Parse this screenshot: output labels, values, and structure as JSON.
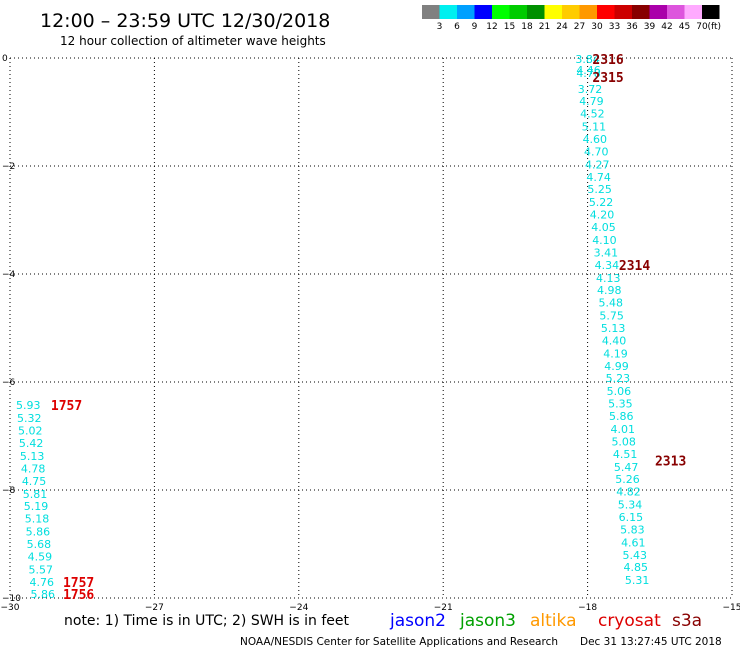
{
  "title": "12:00 – 23:59 UTC 12/30/2018",
  "subtitle": "12 hour collection of altimeter wave heights",
  "note": "note: 1) Time is in UTC; 2) SWH is in feet",
  "footer_left": "NOAA/NESDIS Center for Satellite Applications and Research",
  "footer_right": "Dec 31 13:27:45 UTC 2018",
  "satellites": [
    {
      "name": "jason2",
      "color": "#0000ff"
    },
    {
      "name": "jason3",
      "color": "#00a000"
    },
    {
      "name": "altika",
      "color": "#ff9900"
    },
    {
      "name": "cryosat",
      "color": "#dd0000"
    },
    {
      "name": "s3a",
      "color": "#880000"
    }
  ],
  "legend": {
    "unit": "(ft)",
    "bins": [
      {
        "label": "3",
        "color": "#808080"
      },
      {
        "label": "6",
        "color": "#00f0f0"
      },
      {
        "label": "9",
        "color": "#00a0ff"
      },
      {
        "label": "12",
        "color": "#0000ff"
      },
      {
        "label": "15",
        "color": "#00ff00"
      },
      {
        "label": "18",
        "color": "#00cc00"
      },
      {
        "label": "21",
        "color": "#009000"
      },
      {
        "label": "24",
        "color": "#ffff00"
      },
      {
        "label": "27",
        "color": "#ffcc00"
      },
      {
        "label": "30",
        "color": "#ff9900"
      },
      {
        "label": "33",
        "color": "#ff0000"
      },
      {
        "label": "36",
        "color": "#cc0000"
      },
      {
        "label": "39",
        "color": "#880000"
      },
      {
        "label": "42",
        "color": "#aa00aa"
      },
      {
        "label": "45",
        "color": "#dd55dd"
      },
      {
        "label": "70",
        "color": "#ffaaff"
      },
      {
        "label": "",
        "color": "#000000"
      }
    ]
  },
  "chart_data": {
    "type": "scatter",
    "xlim": [
      -30,
      -15
    ],
    "ylim": [
      -10,
      0
    ],
    "xticks": [
      -30,
      -27,
      -24,
      -21,
      -18,
      -15
    ],
    "yticks": [
      0,
      -2,
      -4,
      -6,
      -8,
      -10
    ],
    "grid": true,
    "value_color": "#00dede",
    "tracks": [
      {
        "points": [
          {
            "x": -18.0,
            "y": -0.02,
            "v": "3.84"
          },
          {
            "x": -17.98,
            "y": -0.22,
            "v": "4.46"
          },
          {
            "x": -17.98,
            "y": -0.28,
            "v": "4.78"
          },
          {
            "x": -17.95,
            "y": -0.57,
            "v": "3.72"
          },
          {
            "x": -17.92,
            "y": -0.8,
            "v": "4.79"
          },
          {
            "x": -17.9,
            "y": -1.03,
            "v": "4.52"
          },
          {
            "x": -17.87,
            "y": -1.27,
            "v": "5.11"
          },
          {
            "x": -17.85,
            "y": -1.5,
            "v": "4.60"
          },
          {
            "x": -17.82,
            "y": -1.73,
            "v": "4.70"
          },
          {
            "x": -17.8,
            "y": -1.97,
            "v": "4.27"
          },
          {
            "x": -17.77,
            "y": -2.2,
            "v": "4.74"
          },
          {
            "x": -17.75,
            "y": -2.43,
            "v": "5.25"
          },
          {
            "x": -17.72,
            "y": -2.67,
            "v": "5.22"
          },
          {
            "x": -17.7,
            "y": -2.9,
            "v": "4.20"
          },
          {
            "x": -17.67,
            "y": -3.13,
            "v": "4.05"
          },
          {
            "x": -17.65,
            "y": -3.37,
            "v": "4.10"
          },
          {
            "x": -17.62,
            "y": -3.6,
            "v": "3.41"
          },
          {
            "x": -17.6,
            "y": -3.83,
            "v": "4.34"
          },
          {
            "x": -17.57,
            "y": -4.07,
            "v": "4.13"
          },
          {
            "x": -17.55,
            "y": -4.3,
            "v": "4.98"
          },
          {
            "x": -17.52,
            "y": -4.53,
            "v": "5.48"
          },
          {
            "x": -17.5,
            "y": -4.77,
            "v": "5.75"
          },
          {
            "x": -17.47,
            "y": -5.0,
            "v": "5.13"
          },
          {
            "x": -17.45,
            "y": -5.23,
            "v": "4.40"
          },
          {
            "x": -17.42,
            "y": -5.47,
            "v": "4.19"
          },
          {
            "x": -17.4,
            "y": -5.7,
            "v": "4.99"
          },
          {
            "x": -17.37,
            "y": -5.93,
            "v": "5.23"
          },
          {
            "x": -17.35,
            "y": -6.17,
            "v": "5.06"
          },
          {
            "x": -17.32,
            "y": -6.4,
            "v": "5.35"
          },
          {
            "x": -17.3,
            "y": -6.63,
            "v": "5.86"
          },
          {
            "x": -17.27,
            "y": -6.87,
            "v": "4.01"
          },
          {
            "x": -17.25,
            "y": -7.1,
            "v": "5.08"
          },
          {
            "x": -17.22,
            "y": -7.33,
            "v": "4.51"
          },
          {
            "x": -17.2,
            "y": -7.57,
            "v": "5.47"
          },
          {
            "x": -17.17,
            "y": -7.8,
            "v": "5.26"
          },
          {
            "x": -17.15,
            "y": -8.03,
            "v": "4.82"
          },
          {
            "x": -17.12,
            "y": -8.27,
            "v": "5.34"
          },
          {
            "x": -17.1,
            "y": -8.5,
            "v": "6.15"
          },
          {
            "x": -17.07,
            "y": -8.73,
            "v": "5.83"
          },
          {
            "x": -17.05,
            "y": -8.97,
            "v": "4.61"
          },
          {
            "x": -17.02,
            "y": -9.2,
            "v": "5.43"
          },
          {
            "x": -17.0,
            "y": -9.43,
            "v": "4.85"
          },
          {
            "x": -16.97,
            "y": -9.67,
            "v": "5.31"
          }
        ]
      },
      {
        "points": [
          {
            "x": -29.62,
            "y": -6.43,
            "v": "5.93"
          },
          {
            "x": -29.6,
            "y": -6.67,
            "v": "5.32"
          },
          {
            "x": -29.58,
            "y": -6.9,
            "v": "5.02"
          },
          {
            "x": -29.56,
            "y": -7.13,
            "v": "5.42"
          },
          {
            "x": -29.54,
            "y": -7.37,
            "v": "5.13"
          },
          {
            "x": -29.52,
            "y": -7.6,
            "v": "4.78"
          },
          {
            "x": -29.5,
            "y": -7.83,
            "v": "4.75"
          },
          {
            "x": -29.48,
            "y": -8.07,
            "v": "5.81"
          },
          {
            "x": -29.46,
            "y": -8.3,
            "v": "5.19"
          },
          {
            "x": -29.44,
            "y": -8.53,
            "v": "5.18"
          },
          {
            "x": -29.42,
            "y": -8.77,
            "v": "5.86"
          },
          {
            "x": -29.4,
            "y": -9.0,
            "v": "5.68"
          },
          {
            "x": -29.38,
            "y": -9.23,
            "v": "4.59"
          },
          {
            "x": -29.36,
            "y": -9.47,
            "v": "5.57"
          },
          {
            "x": -29.34,
            "y": -9.7,
            "v": "4.76"
          },
          {
            "x": -29.32,
            "y": -9.93,
            "v": "5.86"
          }
        ]
      }
    ],
    "time_labels": [
      {
        "x": -17.9,
        "y": -0.02,
        "text": "2316",
        "color": "#880000"
      },
      {
        "x": -17.9,
        "y": -0.35,
        "text": "2315",
        "color": "#880000"
      },
      {
        "x": -17.35,
        "y": -3.83,
        "text": "2314",
        "color": "#880000"
      },
      {
        "x": -16.6,
        "y": -7.45,
        "text": "2313",
        "color": "#880000"
      },
      {
        "x": -29.15,
        "y": -6.43,
        "text": "1757",
        "color": "#dd0000"
      },
      {
        "x": -28.9,
        "y": -9.7,
        "text": "1757",
        "color": "#dd0000"
      },
      {
        "x": -28.9,
        "y": -9.93,
        "text": "1756",
        "color": "#dd0000"
      }
    ]
  }
}
